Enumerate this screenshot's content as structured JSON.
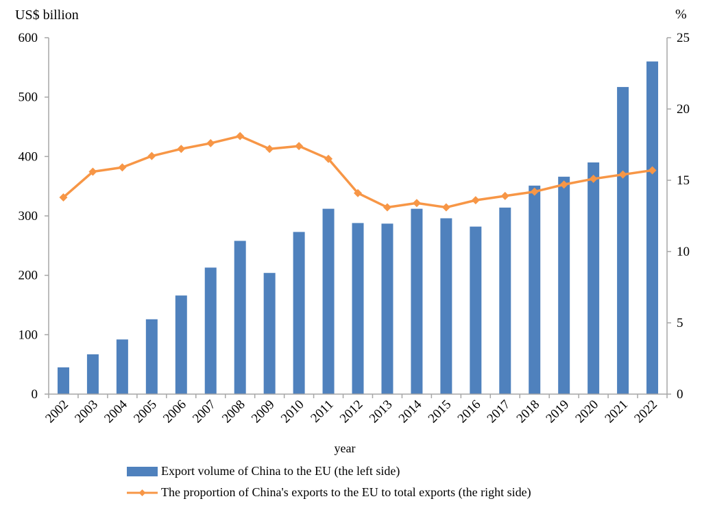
{
  "chart_data": {
    "type": "bar",
    "categories": [
      "2002",
      "2003",
      "2004",
      "2005",
      "2006",
      "2007",
      "2008",
      "2009",
      "2010",
      "2011",
      "2012",
      "2013",
      "2014",
      "2015",
      "2016",
      "2017",
      "2018",
      "2019",
      "2020",
      "2021",
      "2022"
    ],
    "series": [
      {
        "name": "Export volume of China to the EU (the left side)",
        "type": "bar",
        "axis": "left",
        "color": "#4f81bd",
        "values": [
          45,
          67,
          92,
          126,
          166,
          213,
          258,
          204,
          273,
          312,
          288,
          287,
          312,
          296,
          282,
          314,
          351,
          366,
          390,
          517,
          560
        ]
      },
      {
        "name": "The proportion of China's exports to the EU to total exports (the right side)",
        "type": "line",
        "axis": "right",
        "color": "#f79646",
        "marker": "diamond",
        "values": [
          13.8,
          15.6,
          15.9,
          16.7,
          17.2,
          17.6,
          18.1,
          17.2,
          17.4,
          16.5,
          14.1,
          13.1,
          13.4,
          13.1,
          13.6,
          13.9,
          14.2,
          14.7,
          15.1,
          15.4,
          15.7
        ]
      }
    ],
    "title": "",
    "xlabel": "year",
    "ylabel": "US$ billion",
    "ylabel_right": "%",
    "ylim": [
      0,
      600
    ],
    "ylim_right": [
      0,
      25
    ],
    "yticks": [
      0,
      100,
      200,
      300,
      400,
      500,
      600
    ],
    "yticks_right": [
      0,
      5,
      10,
      15,
      20,
      25
    ],
    "grid": false,
    "legend_position": "bottom"
  },
  "legend": {
    "bar_label": "Export volume of China to the EU (the left side)",
    "line_label": "The proportion of China's exports to the EU to total exports (the right side)"
  },
  "axes": {
    "left_title": "US$ billion",
    "right_title": "%",
    "x_title": "year"
  }
}
